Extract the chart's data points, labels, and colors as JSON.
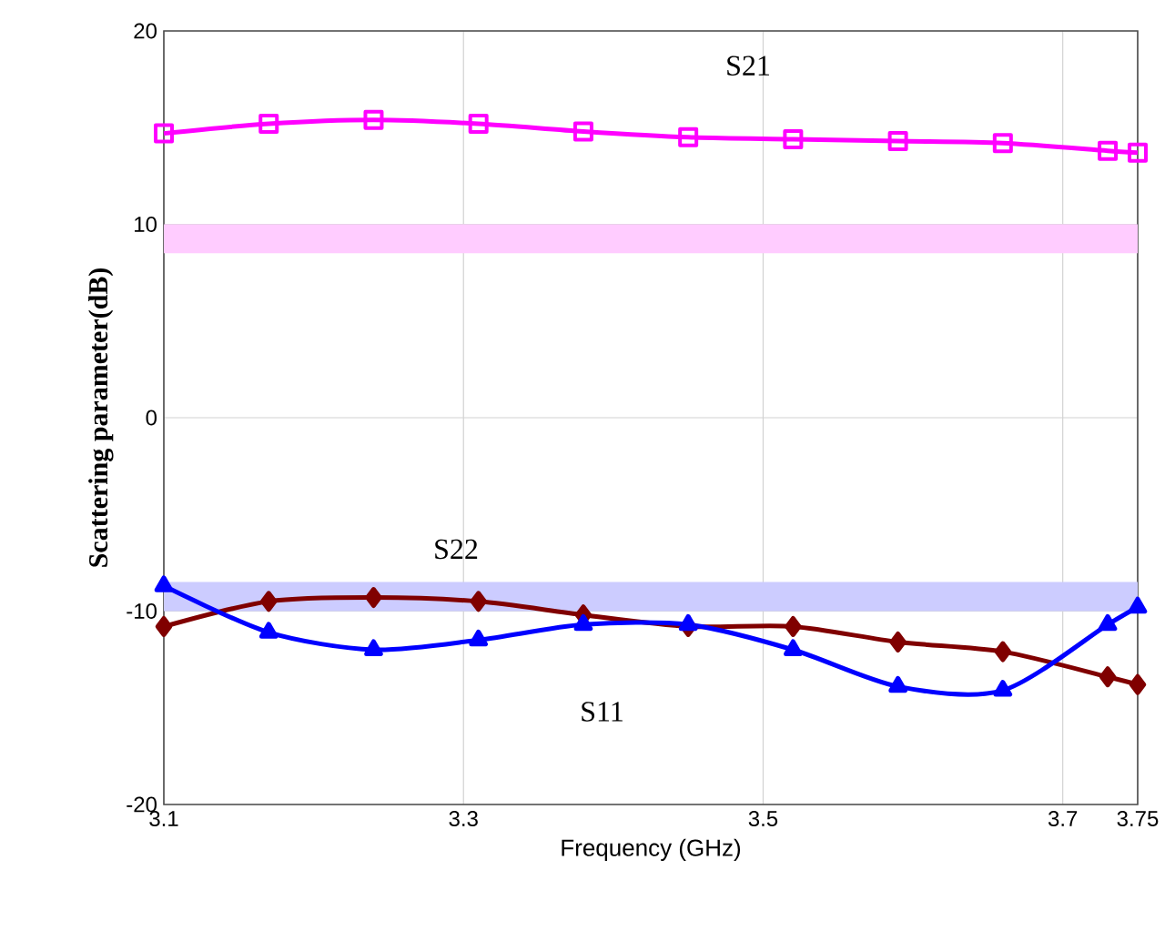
{
  "chart_data": {
    "type": "line",
    "xlabel": "Frequency (GHz)",
    "ylabel": "Scattering parameter(dB)",
    "xlim": [
      3.1,
      3.75
    ],
    "ylim": [
      -20,
      20
    ],
    "xticks": [
      3.1,
      3.3,
      3.5,
      3.7,
      3.75
    ],
    "yticks": [
      -20,
      -10,
      0,
      10,
      20
    ],
    "grid": true,
    "series": [
      {
        "name": "S21",
        "color": "#ff00ff",
        "marker": "square",
        "x": [
          3.1,
          3.17,
          3.24,
          3.31,
          3.38,
          3.45,
          3.52,
          3.59,
          3.66,
          3.73,
          3.75
        ],
        "values": [
          14.7,
          15.2,
          15.4,
          15.2,
          14.8,
          14.5,
          14.4,
          14.3,
          14.2,
          13.8,
          13.7
        ]
      },
      {
        "name": "S22",
        "color": "#800000",
        "marker": "diamond",
        "x": [
          3.1,
          3.17,
          3.24,
          3.31,
          3.38,
          3.45,
          3.52,
          3.59,
          3.66,
          3.73,
          3.75
        ],
        "values": [
          -10.8,
          -9.5,
          -9.3,
          -9.5,
          -10.2,
          -10.8,
          -10.8,
          -11.6,
          -12.1,
          -13.4,
          -13.8
        ]
      },
      {
        "name": "S11",
        "color": "#0000ff",
        "marker": "triangle",
        "x": [
          3.1,
          3.17,
          3.24,
          3.31,
          3.38,
          3.45,
          3.52,
          3.59,
          3.66,
          3.73,
          3.75
        ],
        "values": [
          -8.7,
          -11.1,
          -12.0,
          -11.5,
          -10.7,
          -10.7,
          -12.0,
          -13.9,
          -14.1,
          -10.7,
          -9.8
        ]
      }
    ],
    "bands": [
      {
        "axis": "y",
        "from": 8.5,
        "to": 10,
        "color": "#ffccff"
      },
      {
        "axis": "y",
        "from": -10,
        "to": -8.5,
        "color": "#ccccff"
      }
    ]
  }
}
